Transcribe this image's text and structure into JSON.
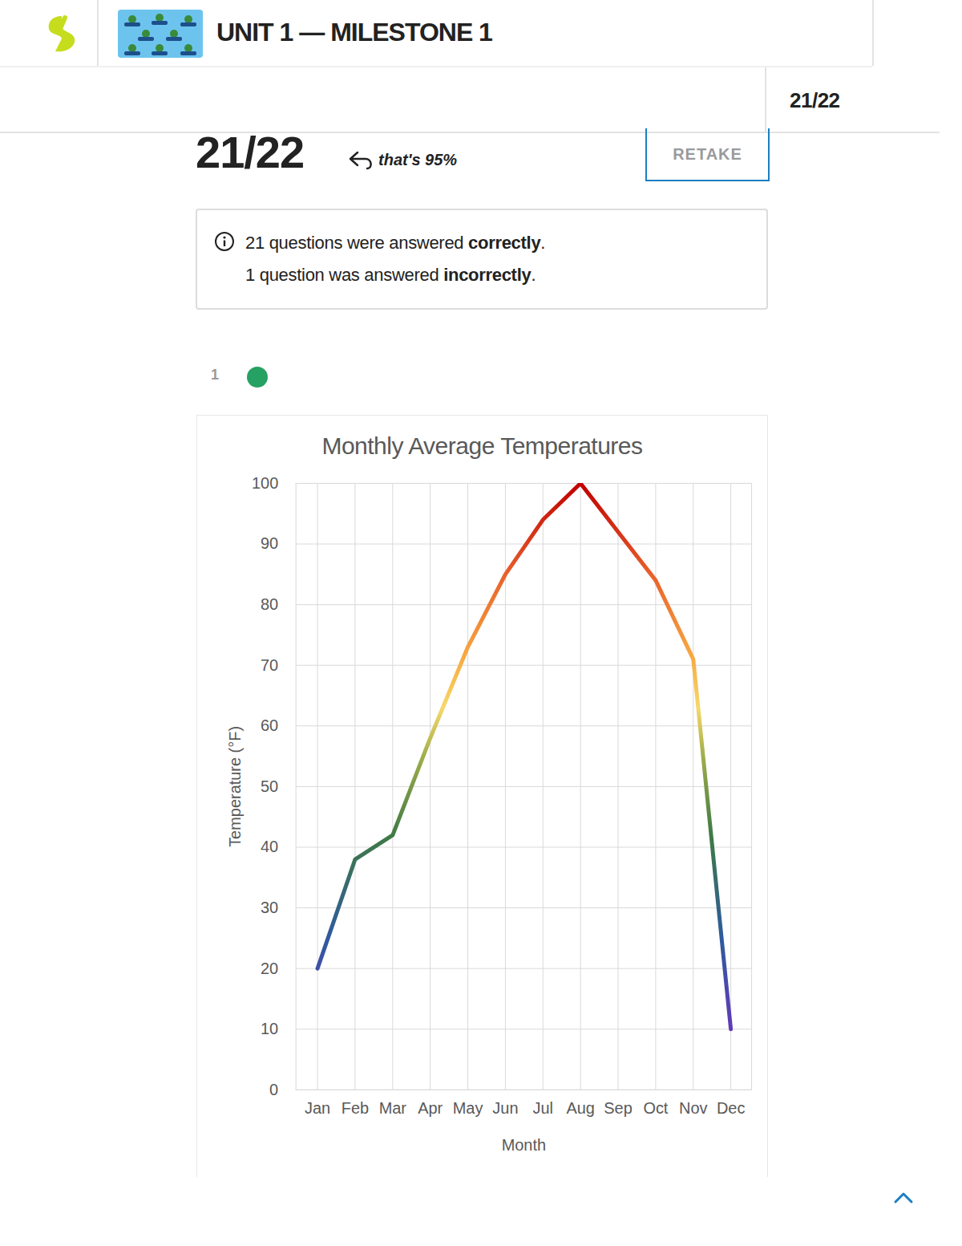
{
  "header": {
    "title": "UNIT 1 — MILESTONE 1",
    "progress": "21/22"
  },
  "score": {
    "value": "21/22",
    "note": "that's 95%",
    "button": "RETAKE"
  },
  "summary": [
    {
      "text": "21 questions were answered correctly.",
      "emphasis": "correctly"
    },
    {
      "text": "1 question was answered incorrectly.",
      "emphasis": "incorrectly"
    }
  ],
  "question": {
    "number": "1"
  },
  "chart_data": {
    "type": "line",
    "title": "Monthly Average Temperatures",
    "x_label": "Month",
    "y_label": "Temperature (°F)",
    "categories": [
      "Jan",
      "Feb",
      "Mar",
      "Apr",
      "May",
      "Jun",
      "Jul",
      "Aug",
      "Sep",
      "Oct",
      "Nov",
      "Dec"
    ],
    "values": [
      20,
      38,
      42,
      58,
      73,
      85,
      94,
      100,
      92,
      84,
      71,
      10
    ],
    "ylim": [
      0,
      100
    ],
    "yticks": [
      0,
      10,
      20,
      30,
      40,
      50,
      60,
      70,
      80,
      90,
      100
    ],
    "grid": true
  }
}
